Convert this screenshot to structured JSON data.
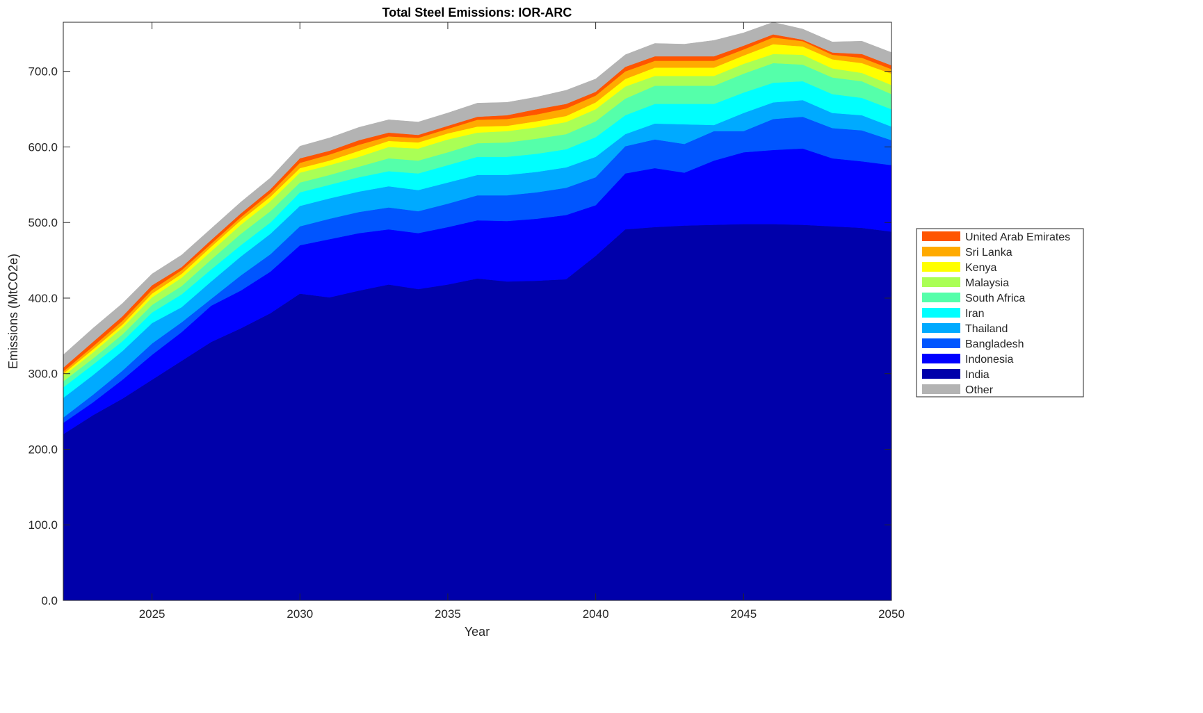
{
  "chart_data": {
    "type": "area",
    "stacked": true,
    "title": "Total Steel Emissions: IOR-ARC",
    "xlabel": "Year",
    "ylabel": "Emissions (MtCO2e)",
    "xlim": [
      2022,
      2050
    ],
    "ylim": [
      0,
      765
    ],
    "xticks": [
      "2025",
      "2030",
      "2035",
      "2040",
      "2045",
      "2050"
    ],
    "yticks": [
      "0.0",
      "100.0",
      "200.0",
      "300.0",
      "400.0",
      "500.0",
      "600.0",
      "700.0"
    ],
    "legend_position": "outside-right",
    "x": [
      2022,
      2023,
      2024,
      2025,
      2026,
      2027,
      2028,
      2029,
      2030,
      2031,
      2032,
      2033,
      2034,
      2035,
      2036,
      2037,
      2038,
      2039,
      2040,
      2041,
      2042,
      2043,
      2044,
      2045,
      2046,
      2047,
      2048,
      2049,
      2050
    ],
    "series": [
      {
        "name": "India",
        "color": "#0000aa",
        "values": [
          220,
          245,
          267,
          292,
          317,
          342,
          360,
          380,
          406,
          401,
          410,
          418,
          412,
          418,
          426,
          422,
          423,
          425,
          456,
          491,
          494,
          496,
          497,
          498,
          498,
          497,
          495,
          493,
          488
        ]
      },
      {
        "name": "Indonesia",
        "color": "#0000ff",
        "values": [
          15,
          17,
          25,
          33,
          38,
          48,
          50,
          55,
          64,
          77,
          76,
          73,
          74,
          76,
          77,
          80,
          82,
          85,
          67,
          74,
          78,
          70,
          85,
          95,
          98,
          101,
          90,
          88,
          88
        ]
      },
      {
        "name": "Bangladesh",
        "color": "#0055ff",
        "values": [
          7,
          10,
          12,
          15,
          13,
          9,
          20,
          23,
          25,
          27,
          28,
          29,
          29,
          31,
          33,
          34,
          35,
          36,
          37,
          36,
          38,
          38,
          39,
          28,
          41,
          42,
          40,
          41,
          33
        ]
      },
      {
        "name": "Thailand",
        "color": "#00aaff",
        "values": [
          26,
          26,
          26,
          27,
          20,
          23,
          25,
          27,
          27,
          27,
          27,
          28,
          28,
          28,
          27,
          27,
          27,
          27,
          27,
          16,
          21,
          26,
          8,
          24,
          22,
          22,
          20,
          20,
          18
        ]
      },
      {
        "name": "Iran",
        "color": "#00ffff",
        "values": [
          14,
          14,
          13,
          14,
          17,
          16,
          15,
          15,
          18,
          18,
          19,
          20,
          22,
          23,
          24,
          24,
          24,
          24,
          26,
          25,
          26,
          27,
          28,
          27,
          26,
          25,
          25,
          23,
          23
        ]
      },
      {
        "name": "South Africa",
        "color": "#55ffaa",
        "values": [
          8,
          8,
          9,
          10,
          11,
          13,
          15,
          15,
          13,
          13,
          14,
          17,
          17,
          17,
          18,
          19,
          20,
          20,
          21,
          22,
          24,
          24,
          24,
          25,
          26,
          22,
          22,
          22,
          20
        ]
      },
      {
        "name": "Malaysia",
        "color": "#aaff55",
        "values": [
          7,
          8,
          9,
          10,
          11,
          11,
          12,
          13,
          13,
          13,
          13,
          15,
          16,
          17,
          14,
          15,
          15,
          16,
          16,
          16,
          13,
          13,
          13,
          13,
          12,
          13,
          12,
          11,
          12
        ]
      },
      {
        "name": "Kenya",
        "color": "#ffff00",
        "values": [
          3,
          4,
          4,
          5,
          5,
          6,
          6,
          6,
          6,
          6,
          8,
          8,
          8,
          8,
          8,
          7,
          8,
          8,
          9,
          10,
          11,
          11,
          11,
          11,
          13,
          11,
          12,
          13,
          15
        ]
      },
      {
        "name": "Sri Lanka",
        "color": "#ffaa00",
        "values": [
          3,
          4,
          5,
          5,
          5,
          4,
          4,
          5,
          7,
          8,
          8,
          6,
          6,
          6,
          9,
          9,
          9,
          10,
          9,
          10,
          9,
          9,
          9,
          8,
          9,
          7,
          6,
          7,
          6
        ]
      },
      {
        "name": "United Arab Emirates",
        "color": "#ff5500",
        "values": [
          5,
          6,
          6,
          6,
          4,
          5,
          5,
          5,
          6,
          5,
          6,
          5,
          4,
          4,
          4,
          5,
          7,
          6,
          5,
          6,
          6,
          6,
          6,
          5,
          4,
          2,
          3,
          5,
          5
        ]
      },
      {
        "name": "Other",
        "color": "#b3b3b3",
        "values": [
          17,
          18,
          17,
          15,
          16,
          15,
          15,
          15,
          16,
          17,
          17,
          17,
          17,
          17,
          18,
          17,
          16,
          18,
          17,
          16,
          17,
          16,
          21,
          17,
          16,
          14,
          14,
          17,
          17
        ]
      }
    ],
    "legend_order": [
      "United Arab Emirates",
      "Sri Lanka",
      "Kenya",
      "Malaysia",
      "South Africa",
      "Iran",
      "Thailand",
      "Bangladesh",
      "Indonesia",
      "India",
      "Other"
    ]
  }
}
